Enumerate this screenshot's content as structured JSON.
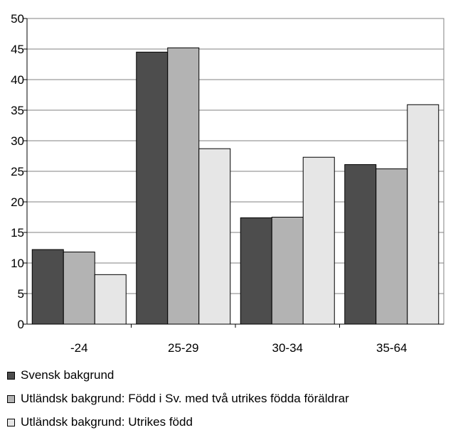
{
  "chart_data": {
    "type": "bar",
    "categories": [
      "-24",
      "25-29",
      "30-34",
      "35-64"
    ],
    "series": [
      {
        "name": "Svensk bakgrund",
        "values": [
          12.2,
          44.5,
          17.4,
          26.1
        ],
        "color": "#4d4d4d"
      },
      {
        "name": "Utländsk bakgrund: Född i Sv. med två utrikes födda föräldrar",
        "values": [
          11.8,
          45.2,
          17.5,
          25.4
        ],
        "color": "#b3b3b3"
      },
      {
        "name": "Utländsk bakgrund: Utrikes född",
        "values": [
          8.1,
          28.7,
          27.3,
          35.9
        ],
        "color": "#e6e6e6"
      }
    ],
    "yticks": [
      "0",
      "5",
      "10",
      "15",
      "20",
      "25",
      "30",
      "35",
      "40",
      "45",
      "50"
    ],
    "ylim": [
      0,
      50
    ],
    "grid": true,
    "legend_position": "bottom"
  }
}
